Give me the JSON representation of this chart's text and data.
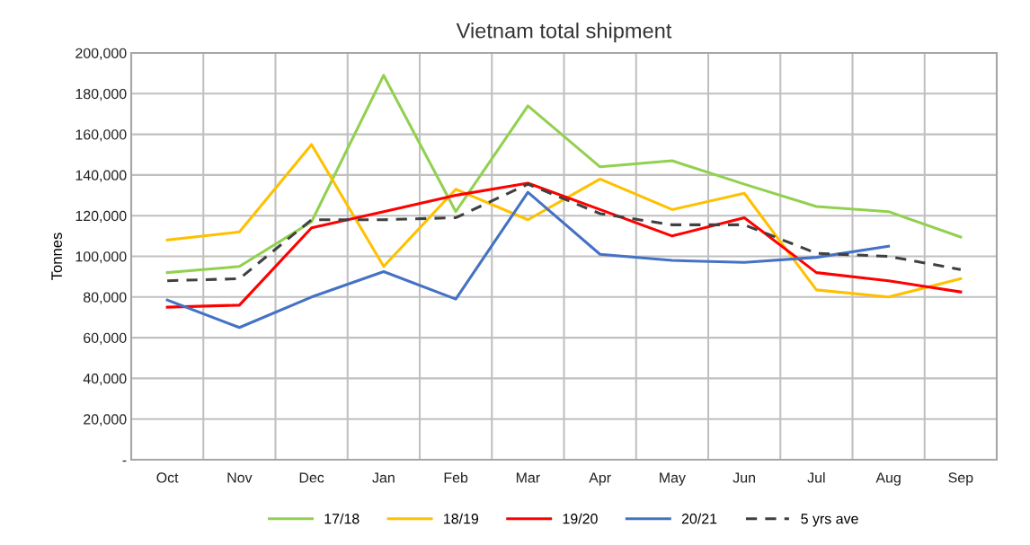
{
  "chart_data": {
    "type": "line",
    "title": "Vietnam total shipment",
    "ylabel": "Tonnes",
    "categories": [
      "Oct",
      "Nov",
      "Dec",
      "Jan",
      "Feb",
      "Mar",
      "Apr",
      "May",
      "Jun",
      "Jul",
      "Aug",
      "Sep"
    ],
    "series": [
      {
        "name": "17/18",
        "color": "#92d050",
        "values": [
          92000,
          95000,
          117000,
          189000,
          122000,
          174000,
          144000,
          147000,
          135500,
          124500,
          122000,
          109500
        ]
      },
      {
        "name": "18/19",
        "color": "#ffc000",
        "values": [
          108000,
          112000,
          155000,
          95000,
          133000,
          118000,
          138000,
          123000,
          131000,
          83500,
          80000,
          89000
        ]
      },
      {
        "name": "19/20",
        "color": "#ff0000",
        "values": [
          75000,
          76000,
          114000,
          122000,
          130000,
          136000,
          123000,
          110000,
          119000,
          92000,
          88000,
          82500
        ]
      },
      {
        "name": "20/21",
        "color": "#4472c4",
        "values": [
          78500,
          65000,
          80000,
          92500,
          79000,
          131500,
          101000,
          98000,
          97000,
          99500,
          105000,
          null
        ]
      },
      {
        "name": "5 yrs ave",
        "color": "#404040",
        "line_style": "dashed",
        "values": [
          88000,
          89000,
          118000,
          118000,
          119000,
          135500,
          121000,
          115500,
          115500,
          101500,
          100000,
          93500
        ]
      }
    ],
    "ylim": [
      0,
      200000
    ],
    "yticks": [
      {
        "value": 0,
        "label": "-"
      },
      {
        "value": 20000,
        "label": "20,000"
      },
      {
        "value": 40000,
        "label": "40,000"
      },
      {
        "value": 60000,
        "label": "60,000"
      },
      {
        "value": 80000,
        "label": "80,000"
      },
      {
        "value": 100000,
        "label": "100,000"
      },
      {
        "value": 120000,
        "label": "120,000"
      },
      {
        "value": 140000,
        "label": "140,000"
      },
      {
        "value": 160000,
        "label": "160,000"
      },
      {
        "value": 180000,
        "label": "180,000"
      },
      {
        "value": 200000,
        "label": "200,000"
      }
    ],
    "grid": true,
    "legend": "bottom",
    "line_style": "solid",
    "marker": "none"
  }
}
